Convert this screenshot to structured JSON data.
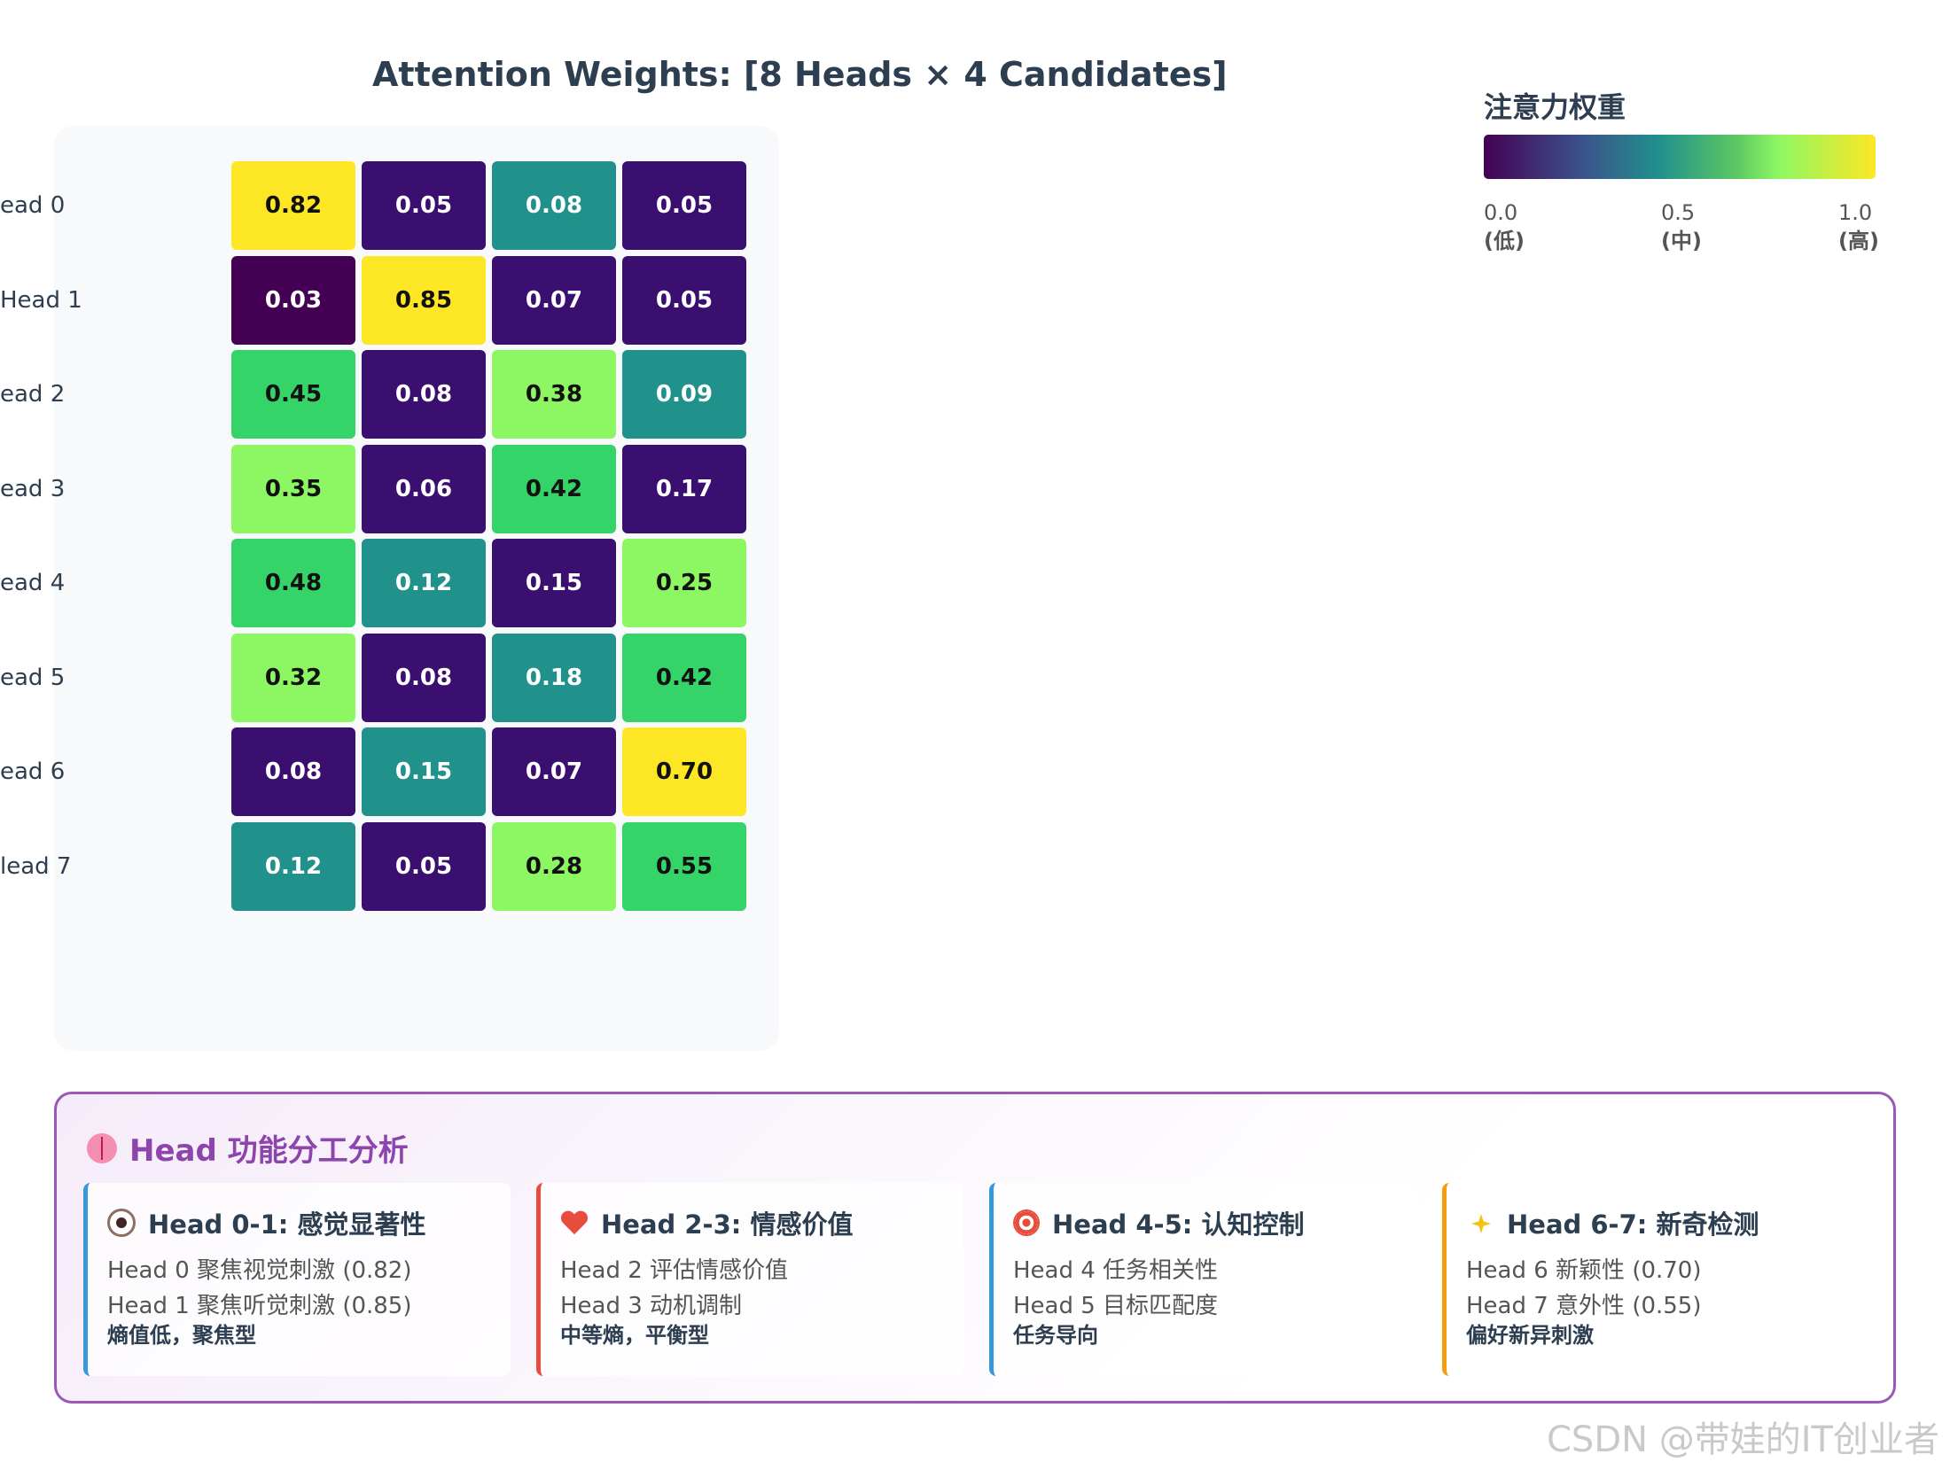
{
  "chart_data": {
    "type": "heatmap",
    "title": "Attention Weights: [8 Heads × 4 Candidates]",
    "rows": [
      "ead 0",
      "Head 1",
      "ead 2",
      "ead 3",
      "ead 4",
      "ead 5",
      "ead 6",
      "lead 7"
    ],
    "columns": [],
    "values": [
      [
        0.82,
        0.05,
        0.08,
        0.05
      ],
      [
        0.03,
        0.85,
        0.07,
        0.05
      ],
      [
        0.45,
        0.08,
        0.38,
        0.09
      ],
      [
        0.35,
        0.06,
        0.42,
        0.17
      ],
      [
        0.48,
        0.12,
        0.15,
        0.25
      ],
      [
        0.32,
        0.08,
        0.18,
        0.42
      ],
      [
        0.08,
        0.15,
        0.07,
        0.7
      ],
      [
        0.12,
        0.05,
        0.28,
        0.55
      ]
    ],
    "value_labels": [
      [
        "0.82",
        "0.05",
        "0.08",
        "0.05"
      ],
      [
        "0.03",
        "0.85",
        "0.07",
        "0.05"
      ],
      [
        "0.45",
        "0.08",
        "0.38",
        "0.09"
      ],
      [
        "0.35",
        "0.06",
        "0.42",
        "0.17"
      ],
      [
        "0.48",
        "0.12",
        "0.15",
        "0.25"
      ],
      [
        "0.32",
        "0.08",
        "0.18",
        "0.42"
      ],
      [
        "0.08",
        "0.15",
        "0.07",
        "0.70"
      ],
      [
        "0.12",
        "0.05",
        "0.28",
        "0.55"
      ]
    ],
    "color_scale": {
      "name": "viridis",
      "range": [
        0.0,
        1.0
      ],
      "colors": [
        "#440154",
        "#3b0f70",
        "#21918c",
        "#35d468",
        "#8df763",
        "#fde725"
      ]
    },
    "legend": {
      "title": "注意力权重",
      "position": "top-right",
      "ticks": [
        {
          "value": "0.0",
          "label": "(低)"
        },
        {
          "value": "0.5",
          "label": "(中)"
        },
        {
          "value": "1.0",
          "label": "(高)"
        }
      ]
    }
  },
  "analysis": {
    "title": "Head 功能分工分析",
    "title_icon": "brain-icon",
    "accent": "#9b59b6",
    "cards": [
      {
        "icon": "eye-icon",
        "title": "Head 0-1: 感觉显著性",
        "lines": [
          "Head 0 聚焦视觉刺激 (0.82)",
          "Head 1 聚焦听觉刺激 (0.85)"
        ],
        "note": "熵值低，聚焦型",
        "color": "#3498db"
      },
      {
        "icon": "heart-icon",
        "title": "Head 2-3: 情感价值",
        "lines": [
          "Head 2 评估情感价值",
          "Head 3 动机调制"
        ],
        "note": "中等熵，平衡型",
        "color": "#e74c3c"
      },
      {
        "icon": "target-icon",
        "title": "Head 4-5: 认知控制",
        "lines": [
          "Head 4 任务相关性",
          "Head 5 目标匹配度"
        ],
        "note": "任务导向",
        "color": "#3498db"
      },
      {
        "icon": "sparkle-icon",
        "title": "Head 6-7: 新奇检测",
        "lines": [
          "Head 6 新颖性 (0.70)",
          "Head 7 意外性 (0.55)"
        ],
        "note": "偏好新异刺激",
        "color": "#f39c12"
      }
    ]
  },
  "watermark": "CSDN @带娃的IT创业者"
}
